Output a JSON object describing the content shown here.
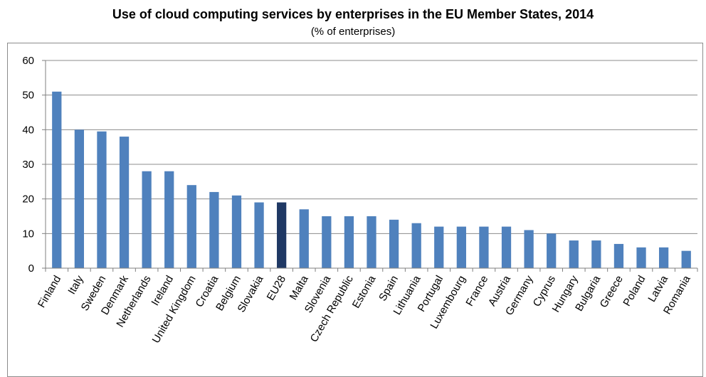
{
  "chart_data": {
    "type": "bar",
    "title": "Use of cloud computing services by enterprises in the EU Member States, 2014",
    "subtitle": "(% of enterprises)",
    "xlabel": "",
    "ylabel": "",
    "ylim": [
      0,
      60
    ],
    "yticks": [
      0,
      10,
      20,
      30,
      40,
      50,
      60
    ],
    "grid": true,
    "categories": [
      "Finland",
      "Italy",
      "Sweden",
      "Denmark",
      "Netherlands",
      "Ireland",
      "United Kingdom",
      "Croatia",
      "Belgium",
      "Slovakia",
      "EU28",
      "Malta",
      "Slovenia",
      "Czech Republic",
      "Estonia",
      "Spain",
      "Lithuania",
      "Portugal",
      "Luxembourg",
      "France",
      "Austria",
      "Germany",
      "Cyprus",
      "Hungary",
      "Bulgaria",
      "Greece",
      "Poland",
      "Latvia",
      "Romania"
    ],
    "values": [
      51,
      40,
      39.5,
      38,
      28,
      28,
      24,
      22,
      21,
      19,
      19,
      17,
      15,
      15,
      15,
      14,
      13,
      12,
      12,
      12,
      12,
      11,
      10,
      8,
      8,
      7,
      6,
      6,
      5
    ],
    "colors": {
      "bar": "#4f81bd",
      "highlight": "#1f3864",
      "grid": "#8c8c8c",
      "axis": "#7f7f7f"
    },
    "highlight_category": "EU28"
  }
}
